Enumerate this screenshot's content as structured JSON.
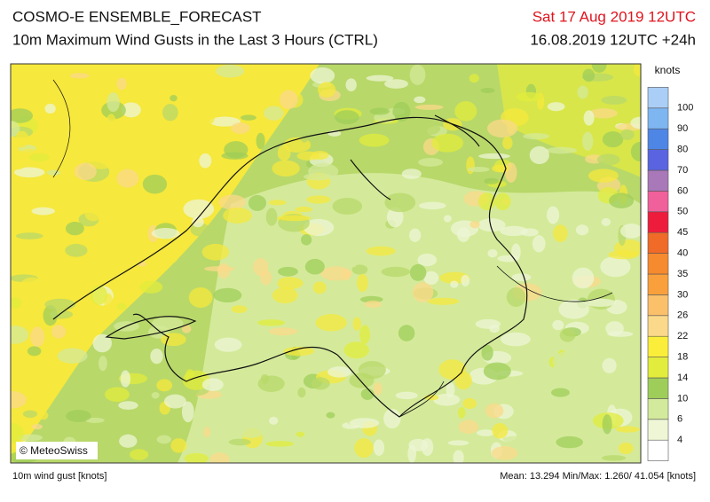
{
  "header": {
    "title": "COSMO-E ENSEMBLE_FORECAST",
    "subtitle": "10m Maximum Wind Gusts in the Last 3 Hours (CTRL)",
    "valid_time": "Sat 17 Aug 2019 12UTC",
    "run_time": "16.08.2019 12UTC +24h"
  },
  "map": {
    "credit": "© MeteoSwiss"
  },
  "legend": {
    "unit": "knots",
    "colors": [
      "#ffffff",
      "#eef6d6",
      "#d3ea9c",
      "#9fcd5a",
      "#e2ec3c",
      "#fbee3a",
      "#fbd98a",
      "#fbc06a",
      "#f9a03c",
      "#f68a2e",
      "#f06a28",
      "#ee1c3c",
      "#f0609a",
      "#a878b8",
      "#5a64e0",
      "#4e86e6",
      "#7eb6f2",
      "#aacef6"
    ],
    "labels": [
      4,
      6,
      10,
      14,
      18,
      22,
      26,
      30,
      35,
      40,
      45,
      50,
      60,
      70,
      80,
      90,
      100
    ]
  },
  "footer": {
    "variable": "10m wind gust [knots]",
    "stats": "Mean: 13.294 Min/Max:  1.260/ 41.054 [knots]"
  }
}
